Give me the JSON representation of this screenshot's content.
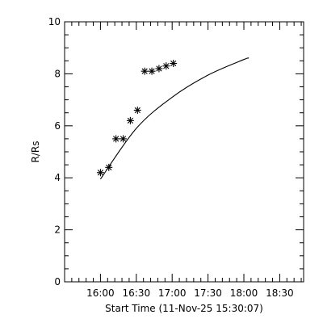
{
  "chart_data": {
    "type": "scatter",
    "title": "",
    "xlabel": "Start Time (11-Nov-25 15:30:07)",
    "ylabel": "R/Rs",
    "xlim": [
      "15:30",
      "18:50"
    ],
    "ylim": [
      0,
      10
    ],
    "x_ticks": [
      "16:00",
      "16:30",
      "17:00",
      "17:30",
      "18:00",
      "18:30"
    ],
    "y_ticks": [
      "0",
      "2",
      "4",
      "6",
      "8",
      "10"
    ],
    "x_minor_step_minutes": 6,
    "y_minor_step": 0.5,
    "grid": false,
    "marker": "asterisk",
    "series": [
      {
        "x": [
          "16:00",
          "16:07",
          "16:13",
          "16:19",
          "16:25",
          "16:31",
          "16:37",
          "16:43",
          "16:49",
          "16:55",
          "17:01"
        ],
        "y": [
          4.2,
          4.4,
          5.5,
          5.5,
          6.2,
          6.6,
          8.1,
          8.1,
          8.2,
          8.3,
          8.4
        ]
      }
    ],
    "fit_line": {
      "x": [
        "16:00",
        "16:30",
        "17:00",
        "17:30",
        "18:00",
        "18:04"
      ],
      "y": [
        3.95,
        5.9,
        7.1,
        7.95,
        8.55,
        8.6
      ]
    }
  }
}
